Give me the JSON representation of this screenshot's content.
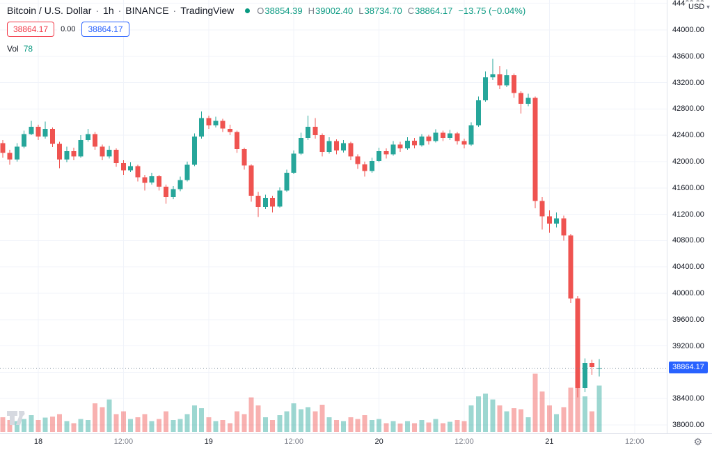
{
  "header": {
    "symbol_title": "Bitcoin / U.S. Dollar",
    "interval": "1h",
    "exchange": "BINANCE",
    "provider": "TradingView",
    "separator": "·",
    "ohlc": [
      {
        "label": "O",
        "value": "38854.39"
      },
      {
        "label": "H",
        "value": "39002.40"
      },
      {
        "label": "L",
        "value": "38734.70"
      },
      {
        "label": "C",
        "value": "38864.17"
      }
    ],
    "change": "−13.75 (−0.04%)"
  },
  "trade_widget": {
    "sell": "38864.17",
    "spread": "0.00",
    "buy": "38864.17"
  },
  "volume_indicator": {
    "label": "Vol",
    "value": "78"
  },
  "currency_button": {
    "label": "USD"
  },
  "icons": {
    "chevron_down": "▾",
    "gear": "⚙"
  },
  "colors": {
    "up": "#26a69a",
    "down": "#ef5350",
    "up_vol": "rgba(38,166,154,0.45)",
    "down_vol": "rgba(239,83,80,0.45)",
    "grid": "#f0f3fa",
    "price_line": "#758696",
    "badge_bg": "#2962ff",
    "accent_green": "#089981",
    "accent_red": "#f23645",
    "accent_blue": "#2962ff"
  },
  "chart_data": {
    "type": "candlestick",
    "title": "Bitcoin / U.S. Dollar",
    "interval": "1h",
    "exchange": "BINANCE",
    "last_price": 38864.17,
    "last_price_label": "38864.17",
    "price_axis": {
      "ticks": [
        38000,
        38400,
        38800,
        39200,
        39600,
        40000,
        40400,
        40800,
        41200,
        41600,
        42000,
        42400,
        42800,
        43200,
        43600,
        44000,
        44400
      ],
      "tick_step": 400,
      "range_shown": [
        38000,
        44400
      ]
    },
    "time_axis": {
      "labels": [
        {
          "text": "18",
          "index": 5,
          "major": true
        },
        {
          "text": "12:00",
          "index": 17,
          "major": false
        },
        {
          "text": "19",
          "index": 29,
          "major": true
        },
        {
          "text": "12:00",
          "index": 41,
          "major": false
        },
        {
          "text": "20",
          "index": 53,
          "major": true
        },
        {
          "text": "12:00",
          "index": 65,
          "major": false
        },
        {
          "text": "21",
          "index": 77,
          "major": true
        },
        {
          "text": "12:00",
          "index": 89,
          "major": false
        }
      ]
    },
    "volume_max": 100,
    "candles_format": [
      "open",
      "high",
      "low",
      "close",
      "volume"
    ],
    "candles": [
      [
        42280,
        42330,
        42060,
        42130,
        25
      ],
      [
        42130,
        42180,
        41950,
        42030,
        20
      ],
      [
        42030,
        42280,
        42000,
        42230,
        18
      ],
      [
        42230,
        42470,
        42200,
        42420,
        22
      ],
      [
        42420,
        42620,
        42400,
        42530,
        28
      ],
      [
        42530,
        42560,
        42330,
        42380,
        20
      ],
      [
        42380,
        42610,
        42350,
        42500,
        24
      ],
      [
        42500,
        42520,
        42220,
        42270,
        26
      ],
      [
        42270,
        42300,
        41900,
        42030,
        30
      ],
      [
        42030,
        42230,
        41990,
        42160,
        18
      ],
      [
        42160,
        42210,
        42020,
        42080,
        15
      ],
      [
        42080,
        42400,
        42060,
        42330,
        22
      ],
      [
        42330,
        42500,
        42300,
        42420,
        20
      ],
      [
        42420,
        42450,
        42180,
        42230,
        48
      ],
      [
        42230,
        42260,
        42020,
        42080,
        42
      ],
      [
        42080,
        42240,
        42050,
        42180,
        55
      ],
      [
        42180,
        42200,
        41920,
        41980,
        30
      ],
      [
        41980,
        42020,
        41800,
        41870,
        35
      ],
      [
        41870,
        41990,
        41840,
        41930,
        22
      ],
      [
        41930,
        41950,
        41700,
        41760,
        25
      ],
      [
        41760,
        41800,
        41560,
        41680,
        30
      ],
      [
        41680,
        41830,
        41650,
        41780,
        18
      ],
      [
        41780,
        41800,
        41560,
        41620,
        22
      ],
      [
        41620,
        41650,
        41360,
        41460,
        35
      ],
      [
        41460,
        41630,
        41430,
        41580,
        20
      ],
      [
        41580,
        41770,
        41550,
        41720,
        22
      ],
      [
        41720,
        42000,
        41700,
        41950,
        30
      ],
      [
        41950,
        42430,
        41930,
        42380,
        45
      ],
      [
        42380,
        42760,
        42350,
        42660,
        40
      ],
      [
        42660,
        42700,
        42500,
        42550,
        25
      ],
      [
        42550,
        42680,
        42520,
        42620,
        18
      ],
      [
        42620,
        42650,
        42450,
        42500,
        20
      ],
      [
        42500,
        42560,
        42400,
        42450,
        15
      ],
      [
        42450,
        42470,
        42130,
        42190,
        35
      ],
      [
        42190,
        42210,
        41880,
        41940,
        30
      ],
      [
        41940,
        41960,
        41390,
        41480,
        58
      ],
      [
        41480,
        41540,
        41160,
        41310,
        45
      ],
      [
        41310,
        41500,
        41280,
        41450,
        25
      ],
      [
        41450,
        41480,
        41230,
        41320,
        20
      ],
      [
        41320,
        41610,
        41300,
        41560,
        28
      ],
      [
        41560,
        41880,
        41540,
        41830,
        35
      ],
      [
        41830,
        42170,
        41810,
        42120,
        48
      ],
      [
        42120,
        42440,
        42100,
        42360,
        38
      ],
      [
        42360,
        42700,
        42330,
        42530,
        42
      ],
      [
        42530,
        42660,
        42350,
        42400,
        35
      ],
      [
        42400,
        42430,
        42080,
        42150,
        46
      ],
      [
        42150,
        42370,
        42120,
        42310,
        25
      ],
      [
        42310,
        42340,
        42110,
        42170,
        20
      ],
      [
        42170,
        42330,
        42140,
        42280,
        18
      ],
      [
        42280,
        42300,
        42020,
        42080,
        25
      ],
      [
        42080,
        42110,
        41890,
        41960,
        22
      ],
      [
        41960,
        42000,
        41770,
        41860,
        28
      ],
      [
        41860,
        42060,
        41830,
        42010,
        20
      ],
      [
        42010,
        42210,
        41990,
        42160,
        22
      ],
      [
        42160,
        42200,
        42050,
        42110,
        15
      ],
      [
        42110,
        42310,
        42090,
        42260,
        18
      ],
      [
        42260,
        42300,
        42150,
        42200,
        14
      ],
      [
        42200,
        42370,
        42180,
        42320,
        18
      ],
      [
        42320,
        42360,
        42200,
        42250,
        15
      ],
      [
        42250,
        42420,
        42230,
        42380,
        20
      ],
      [
        42380,
        42410,
        42260,
        42310,
        16
      ],
      [
        42310,
        42490,
        42290,
        42440,
        22
      ],
      [
        42440,
        42470,
        42310,
        42360,
        15
      ],
      [
        42360,
        42480,
        42330,
        42430,
        17
      ],
      [
        42430,
        42450,
        42260,
        42310,
        20
      ],
      [
        42310,
        42350,
        42200,
        42260,
        18
      ],
      [
        42260,
        42600,
        42240,
        42550,
        45
      ],
      [
        42550,
        42990,
        42530,
        42930,
        60
      ],
      [
        42930,
        43370,
        42910,
        43280,
        65
      ],
      [
        43280,
        43560,
        43240,
        43330,
        55
      ],
      [
        43330,
        43450,
        43100,
        43160,
        45
      ],
      [
        43160,
        43400,
        43130,
        43310,
        35
      ],
      [
        43310,
        43340,
        42970,
        43040,
        40
      ],
      [
        43040,
        43070,
        42730,
        42880,
        38
      ],
      [
        42880,
        43030,
        42840,
        42970,
        25
      ],
      [
        42970,
        42990,
        41290,
        41400,
        98
      ],
      [
        41400,
        41460,
        40970,
        41170,
        68
      ],
      [
        41170,
        41260,
        40920,
        41060,
        45
      ],
      [
        41060,
        41230,
        41000,
        41140,
        30
      ],
      [
        41140,
        41180,
        40800,
        40880,
        42
      ],
      [
        40880,
        40900,
        39850,
        39920,
        75
      ],
      [
        39920,
        39960,
        38420,
        38560,
        92
      ],
      [
        38560,
        39010,
        38500,
        38940,
        60
      ],
      [
        38940,
        38990,
        38760,
        38877.92,
        35
      ],
      [
        38854.39,
        39002.4,
        38734.7,
        38864.17,
        78
      ]
    ]
  }
}
